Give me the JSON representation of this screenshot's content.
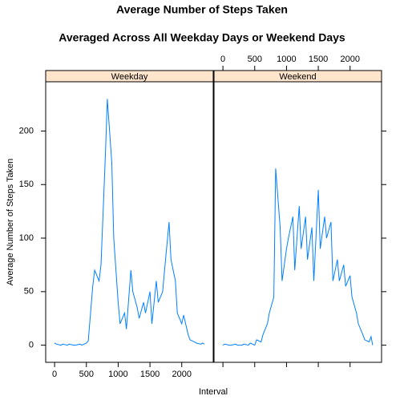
{
  "chart_data": {
    "type": "line",
    "title": "Average Number of Steps Taken",
    "subtitle": "Averaged Across All Weekday Days or Weekend Days",
    "xlabel": "Interval",
    "ylabel": "Average Number of Steps Taken",
    "xlim": [
      -140,
      2495
    ],
    "ylim": [
      -16,
      246
    ],
    "xticks": [
      0,
      500,
      1000,
      1500,
      2000
    ],
    "yticks": [
      0,
      50,
      100,
      150,
      200
    ],
    "x": [
      0,
      30,
      100,
      130,
      200,
      230,
      300,
      330,
      400,
      430,
      500,
      530,
      600,
      630,
      700,
      730,
      800,
      830,
      900,
      930,
      1000,
      1030,
      1100,
      1130,
      1200,
      1230,
      1300,
      1330,
      1400,
      1430,
      1500,
      1530,
      1600,
      1630,
      1700,
      1730,
      1800,
      1830,
      1900,
      1930,
      2000,
      2030,
      2100,
      2130,
      2200,
      2230,
      2300,
      2330,
      2355
    ],
    "series": [
      {
        "name": "Weekday",
        "color": "#0080ff",
        "values": [
          2,
          1,
          0,
          1,
          0,
          1,
          0,
          0,
          1,
          0,
          2,
          4,
          55,
          70,
          60,
          75,
          180,
          230,
          170,
          100,
          40,
          20,
          30,
          15,
          70,
          50,
          35,
          25,
          40,
          30,
          50,
          20,
          60,
          40,
          50,
          70,
          115,
          80,
          60,
          30,
          20,
          28,
          10,
          5,
          3,
          2,
          1,
          2,
          1
        ]
      },
      {
        "name": "Weekend",
        "color": "#0080ff",
        "values": [
          0,
          1,
          0,
          0,
          1,
          0,
          0,
          1,
          0,
          2,
          0,
          5,
          3,
          10,
          20,
          30,
          45,
          165,
          110,
          60,
          90,
          100,
          120,
          70,
          130,
          90,
          120,
          80,
          110,
          60,
          145,
          90,
          120,
          100,
          115,
          60,
          80,
          60,
          75,
          55,
          65,
          45,
          30,
          20,
          10,
          5,
          3,
          8,
          0
        ]
      }
    ]
  }
}
